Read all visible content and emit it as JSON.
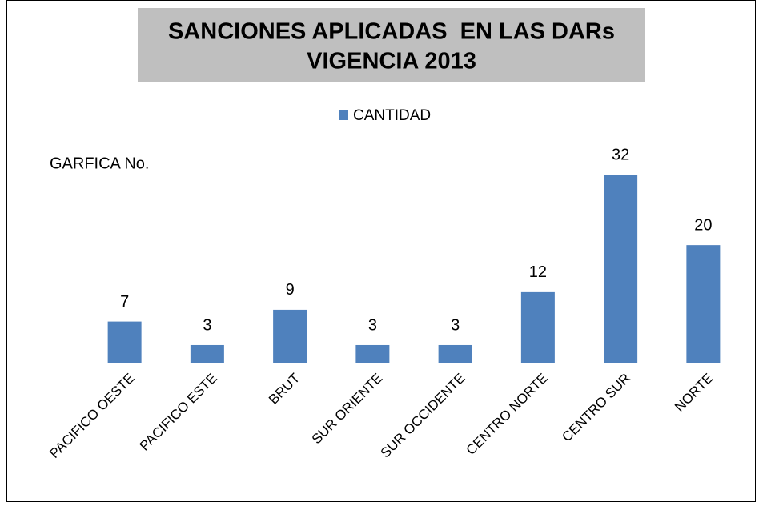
{
  "chart_data": {
    "type": "bar",
    "title": [
      "SANCIONES APLICADAS  EN LAS DARs",
      "VIGENCIA 2013"
    ],
    "annotation": "GARFICA No.",
    "categories": [
      "PACIFICO OESTE",
      "PACIFICO ESTE",
      "BRUT",
      "SUR ORIENTE",
      "SUR OCCIDENTE",
      "CENTRO NORTE",
      "CENTRO SUR",
      "NORTE"
    ],
    "series": [
      {
        "name": "CANTIDAD",
        "color": "#4f81bd",
        "values": [
          7,
          3,
          9,
          3,
          3,
          12,
          32,
          20
        ]
      }
    ],
    "ylim": [
      0,
      35
    ],
    "legend": "top"
  }
}
